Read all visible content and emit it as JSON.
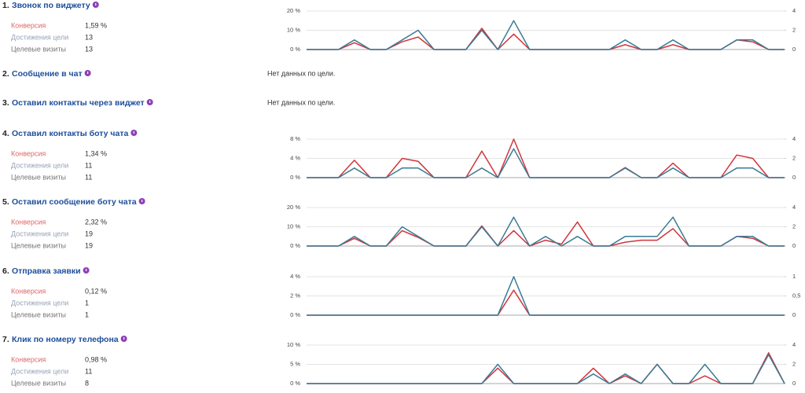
{
  "goals": [
    {
      "number": "1.",
      "title": "Звонок по виджету",
      "metrics": [
        {
          "label": "Конверсия",
          "value": "1,59 %"
        },
        {
          "label": "Достижения цели",
          "value": "13"
        },
        {
          "label": "Целевые визиты",
          "value": "13"
        }
      ],
      "chart": {
        "type": "line",
        "ylim": [
          0,
          20
        ],
        "yticks": [
          {
            "value": 0,
            "label": "0 %"
          },
          {
            "value": 10,
            "label": "10 %"
          },
          {
            "value": 20,
            "label": "20 %"
          }
        ],
        "y2lim": [
          0,
          4
        ],
        "y2ticks": [
          0,
          2,
          4
        ],
        "series": [
          {
            "color": "#d1343d",
            "values": [
              0,
              0,
              0,
              3.5,
              0,
              0,
              4,
              6.5,
              0,
              0,
              0,
              11,
              0,
              8,
              0,
              0,
              0,
              0,
              0,
              0,
              2.5,
              0,
              0,
              2.5,
              0,
              0,
              0,
              5,
              4,
              0,
              0
            ]
          },
          {
            "color": "#3b7b95",
            "axis": "y2",
            "values": [
              0,
              0,
              0,
              1,
              0,
              0,
              1,
              2,
              0,
              0,
              0,
              2,
              0,
              3,
              0,
              0,
              0,
              0,
              0,
              0,
              1,
              0,
              0,
              1,
              0,
              0,
              0,
              1,
              1,
              0,
              0
            ]
          }
        ]
      }
    },
    {
      "number": "2.",
      "title": "Сообщение в чат",
      "no_data": "Нет данных по цели."
    },
    {
      "number": "3.",
      "title": "Оставил контакты через виджет",
      "no_data": "Нет данных по цели."
    },
    {
      "number": "4.",
      "title": "Оставил контакты боту чата",
      "metrics": [
        {
          "label": "Конверсия",
          "value": "1,34 %"
        },
        {
          "label": "Достижения цели",
          "value": "11"
        },
        {
          "label": "Целевые визиты",
          "value": "11"
        }
      ],
      "chart": {
        "type": "line",
        "ylim": [
          0,
          8
        ],
        "yticks": [
          {
            "value": 0,
            "label": "0 %"
          },
          {
            "value": 4,
            "label": "4 %"
          },
          {
            "value": 8,
            "label": "8 %"
          }
        ],
        "y2lim": [
          0,
          4
        ],
        "y2ticks": [
          0,
          2,
          4
        ],
        "series": [
          {
            "color": "#d1343d",
            "values": [
              0,
              0,
              0,
              3.6,
              0,
              0,
              4,
              3.4,
              0,
              0,
              0,
              5.5,
              0,
              8,
              0,
              0,
              0,
              0,
              0,
              0,
              2.1,
              0,
              0,
              3,
              0,
              0,
              0,
              4.7,
              4,
              0,
              0
            ]
          },
          {
            "color": "#3b7b95",
            "axis": "y2",
            "values": [
              0,
              0,
              0,
              1,
              0,
              0,
              1,
              1,
              0,
              0,
              0,
              1,
              0,
              3,
              0,
              0,
              0,
              0,
              0,
              0,
              1,
              0,
              0,
              1,
              0,
              0,
              0,
              1,
              1,
              0,
              0
            ]
          }
        ]
      }
    },
    {
      "number": "5.",
      "title": "Оставил сообщение боту чата",
      "metrics": [
        {
          "label": "Конверсия",
          "value": "2,32 %"
        },
        {
          "label": "Достижения цели",
          "value": "19"
        },
        {
          "label": "Целевые визиты",
          "value": "19"
        }
      ],
      "chart": {
        "type": "line",
        "ylim": [
          0,
          20
        ],
        "yticks": [
          {
            "value": 0,
            "label": "0 %"
          },
          {
            "value": 10,
            "label": "10 %"
          },
          {
            "value": 20,
            "label": "20 %"
          }
        ],
        "y2lim": [
          0,
          4
        ],
        "y2ticks": [
          0,
          2,
          4
        ],
        "series": [
          {
            "color": "#d1343d",
            "values": [
              0,
              0,
              0,
              4,
              0,
              0,
              8,
              4.5,
              0,
              0,
              0,
              10.5,
              0,
              8,
              0,
              3,
              1,
              12.5,
              0,
              0,
              2,
              3,
              3,
              9,
              0,
              0,
              0,
              5,
              4,
              0,
              0
            ]
          },
          {
            "color": "#3b7b95",
            "axis": "y2",
            "values": [
              0,
              0,
              0,
              1,
              0,
              0,
              2,
              1,
              0,
              0,
              0,
              2,
              0,
              3,
              0,
              1,
              0,
              1,
              0,
              0,
              1,
              1,
              1,
              3,
              0,
              0,
              0,
              1,
              1,
              0,
              0
            ]
          }
        ]
      }
    },
    {
      "number": "6.",
      "title": "Отправка заявки",
      "metrics": [
        {
          "label": "Конверсия",
          "value": "0,12 %"
        },
        {
          "label": "Достижения цели",
          "value": "1"
        },
        {
          "label": "Целевые визиты",
          "value": "1"
        }
      ],
      "chart": {
        "type": "line",
        "ylim": [
          0,
          4
        ],
        "yticks": [
          {
            "value": 0,
            "label": "0 %"
          },
          {
            "value": 2,
            "label": "2 %"
          },
          {
            "value": 4,
            "label": "4 %"
          }
        ],
        "y2lim": [
          0,
          1
        ],
        "y2ticks": [
          0,
          {
            "value": 0.5,
            "label": "0,5"
          },
          1
        ],
        "series": [
          {
            "color": "#d1343d",
            "values": [
              0,
              0,
              0,
              0,
              0,
              0,
              0,
              0,
              0,
              0,
              0,
              0,
              0,
              2.6,
              0,
              0,
              0,
              0,
              0,
              0,
              0,
              0,
              0,
              0,
              0,
              0,
              0,
              0,
              0,
              0,
              0
            ]
          },
          {
            "color": "#3b7b95",
            "axis": "y2",
            "values": [
              0,
              0,
              0,
              0,
              0,
              0,
              0,
              0,
              0,
              0,
              0,
              0,
              0,
              1,
              0,
              0,
              0,
              0,
              0,
              0,
              0,
              0,
              0,
              0,
              0,
              0,
              0,
              0,
              0,
              0,
              0
            ]
          }
        ]
      }
    },
    {
      "number": "7.",
      "title": "Клик по номеру телефона",
      "metrics": [
        {
          "label": "Конверсия",
          "value": "0,98 %"
        },
        {
          "label": "Достижения цели",
          "value": "11"
        },
        {
          "label": "Целевые визиты",
          "value": "8"
        }
      ],
      "chart": {
        "type": "line",
        "ylim": [
          0,
          10
        ],
        "yticks": [
          {
            "value": 0,
            "label": "0 %"
          },
          {
            "value": 5,
            "label": "5 %"
          },
          {
            "value": 10,
            "label": "10 %"
          }
        ],
        "y2lim": [
          0,
          4
        ],
        "y2ticks": [
          0,
          2,
          4
        ],
        "series": [
          {
            "color": "#d1343d",
            "values": [
              0,
              0,
              0,
              0,
              0,
              0,
              0,
              0,
              0,
              0,
              0,
              0,
              4,
              0,
              0,
              0,
              0,
              0,
              4,
              0,
              2,
              0,
              5,
              0,
              0,
              2,
              0,
              0,
              0,
              8,
              0
            ]
          },
          {
            "color": "#3b7b95",
            "axis": "y2",
            "values": [
              0,
              0,
              0,
              0,
              0,
              0,
              0,
              0,
              0,
              0,
              0,
              0,
              2,
              0,
              0,
              0,
              0,
              0,
              1,
              0,
              1,
              0,
              2,
              0,
              0,
              2,
              0,
              0,
              0,
              3,
              0
            ]
          }
        ]
      }
    }
  ]
}
